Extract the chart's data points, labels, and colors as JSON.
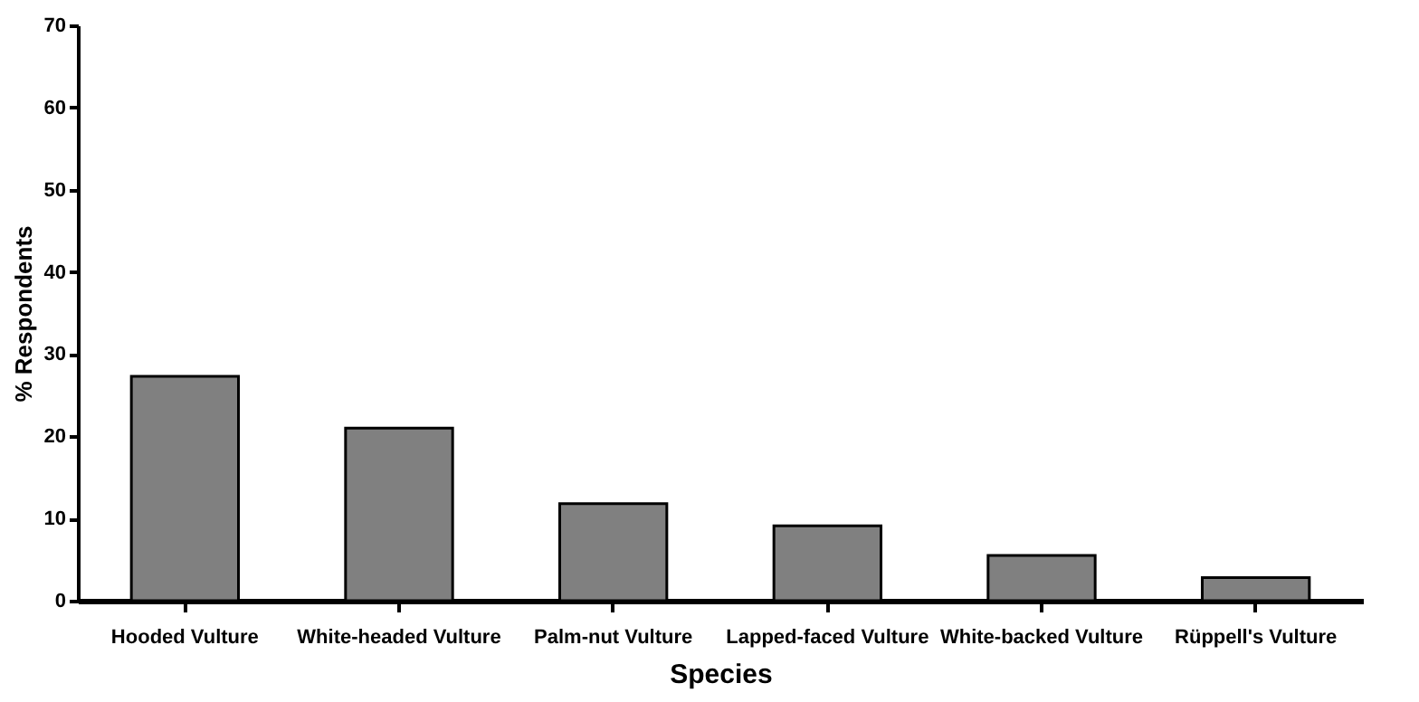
{
  "chart_data": {
    "type": "bar",
    "xlabel": "Species",
    "ylabel": "% Respondents",
    "categories": [
      "Hooded Vulture",
      "White-headed Vulture",
      "Palm-nut Vulture",
      "Lapped-faced Vulture",
      "White-backed Vulture",
      "Rüppell's Vulture"
    ],
    "values": [
      27.3,
      21.0,
      11.8,
      9.1,
      5.5,
      2.8
    ],
    "color": "#808080",
    "ylim": [
      0,
      70
    ],
    "yticks": [
      0,
      10,
      20,
      30,
      40,
      50,
      60,
      70
    ],
    "grid": false
  }
}
